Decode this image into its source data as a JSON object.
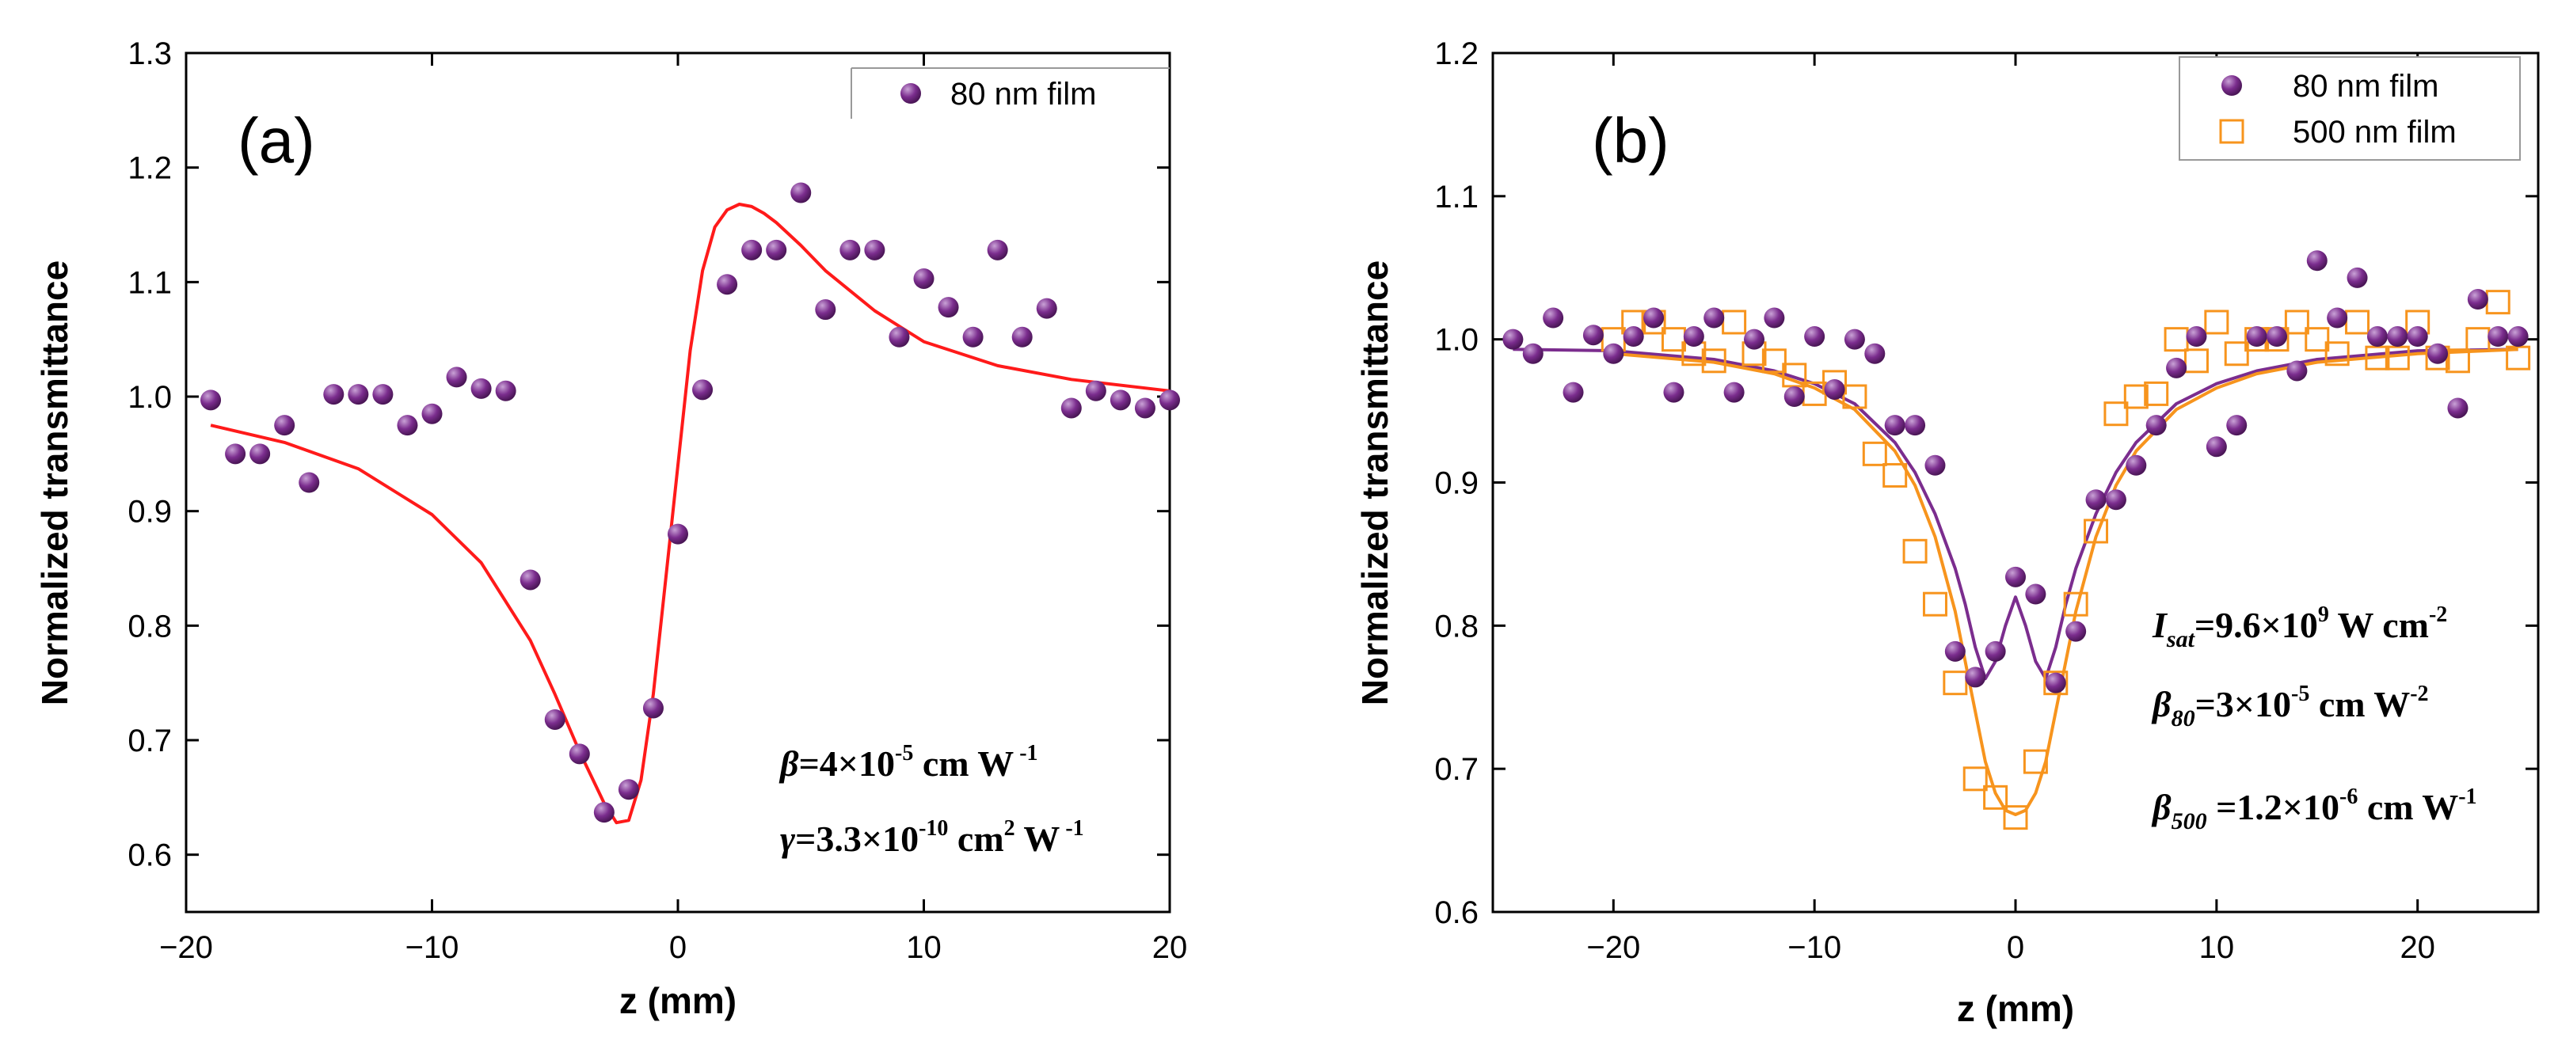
{
  "colors": {
    "dot": "#7b2d8e",
    "dot_highlight": "#c9a2d6",
    "fit_a": "#ff1a1a",
    "square": "#f7941d",
    "fit_b_purple": "#7b2d8e",
    "fit_b_orange": "#f7941d"
  },
  "chart_data": [
    {
      "id": "a",
      "type": "scatter",
      "panel_label": "(a)",
      "xlabel": "z (mm)",
      "ylabel": "Normalized transmittance",
      "xlim": [
        -20,
        20
      ],
      "ylim": [
        0.55,
        1.3
      ],
      "xticks": [
        -20,
        -10,
        0,
        10,
        20
      ],
      "xtick_labels": [
        "−20",
        "−10",
        "0",
        "10",
        "20"
      ],
      "yticks": [
        0.6,
        0.7,
        0.8,
        0.9,
        1.0,
        1.1,
        1.2,
        1.3
      ],
      "ytick_labels": [
        "0.6",
        "0.7",
        "0.8",
        "0.9",
        "1.0",
        "1.1",
        "1.2",
        "1.3"
      ],
      "legend": [
        {
          "name": "80 nm film",
          "marker": "circle"
        }
      ],
      "series": [
        {
          "name": "80 nm film",
          "marker": "circle",
          "x": [
            -19,
            -18,
            -17,
            -16,
            -15,
            -14,
            -13,
            -12,
            -11,
            -10,
            -9,
            -8,
            -7,
            -6,
            -5,
            -4,
            -3,
            -2,
            -1,
            0,
            1,
            2,
            3,
            4,
            5,
            6,
            7,
            8,
            9,
            10,
            11,
            12,
            13,
            14,
            15,
            16,
            17,
            18,
            19,
            20
          ],
          "y": [
            0.997,
            0.95,
            0.95,
            0.975,
            0.925,
            1.002,
            1.002,
            1.002,
            0.975,
            0.985,
            1.017,
            1.007,
            1.005,
            0.84,
            0.718,
            0.688,
            0.637,
            0.657,
            0.728,
            0.88,
            1.006,
            1.098,
            1.128,
            1.128,
            1.178,
            1.076,
            1.128,
            1.128,
            1.052,
            1.103,
            1.078,
            1.052,
            1.128,
            1.052,
            1.077,
            0.99,
            1.005,
            0.997,
            0.99,
            0.997
          ]
        }
      ],
      "fit": {
        "name": "fit",
        "x": [
          -19,
          -16,
          -13,
          -10,
          -8,
          -6,
          -5,
          -4,
          -3,
          -2.5,
          -2,
          -1.5,
          -1,
          -0.5,
          0,
          0.5,
          1,
          1.5,
          2,
          2.5,
          3,
          3.5,
          4,
          5,
          6,
          8,
          10,
          13,
          16,
          20
        ],
        "y": [
          0.975,
          0.96,
          0.937,
          0.897,
          0.855,
          0.787,
          0.74,
          0.69,
          0.645,
          0.628,
          0.63,
          0.665,
          0.74,
          0.84,
          0.94,
          1.04,
          1.11,
          1.148,
          1.163,
          1.168,
          1.166,
          1.16,
          1.152,
          1.132,
          1.11,
          1.075,
          1.048,
          1.027,
          1.015,
          1.005
        ]
      },
      "annotations": [
        {
          "symbol": "β",
          "text": "=4×10",
          "sup": "-5",
          "tail": " cm W",
          "tail_sup": " -1"
        },
        {
          "symbol": "γ",
          "text": "=3.3×10",
          "sup": "-10",
          "tail": " cm",
          "tail_sup": "2",
          "tail2": " W",
          "tail2_sup": " -1"
        }
      ]
    },
    {
      "id": "b",
      "type": "scatter",
      "panel_label": "(b)",
      "xlabel": "z (mm)",
      "ylabel": "Normalized transmittance",
      "xlim": [
        -26,
        26
      ],
      "ylim": [
        0.6,
        1.2
      ],
      "xticks": [
        -20,
        -10,
        0,
        10,
        20
      ],
      "xtick_labels": [
        "−20",
        "−10",
        "0",
        "10",
        "20"
      ],
      "yticks": [
        0.6,
        0.7,
        0.8,
        0.9,
        1.0,
        1.1,
        1.2
      ],
      "ytick_labels": [
        "0.6",
        "0.7",
        "0.8",
        "0.9",
        "1.0",
        "1.1",
        "1.2"
      ],
      "legend": [
        {
          "name": "80 nm film",
          "marker": "circle"
        },
        {
          "name": "500 nm film",
          "marker": "square"
        }
      ],
      "series": [
        {
          "name": "80 nm film",
          "marker": "circle",
          "x": [
            -25,
            -24,
            -23,
            -22,
            -21,
            -20,
            -19,
            -18,
            -17,
            -16,
            -15,
            -14,
            -13,
            -12,
            -11,
            -10,
            -9,
            -8,
            -7,
            -6,
            -5,
            -4,
            -3,
            -2,
            -1,
            0,
            1,
            2,
            3,
            4,
            5,
            6,
            7,
            8,
            9,
            10,
            11,
            12,
            13,
            14,
            15,
            16,
            17,
            18,
            19,
            20,
            21,
            22,
            23,
            24,
            25
          ],
          "y": [
            1.0,
            0.99,
            1.015,
            0.963,
            1.003,
            0.99,
            1.002,
            1.015,
            0.963,
            1.002,
            1.015,
            0.963,
            1.0,
            1.015,
            0.96,
            1.002,
            0.965,
            1.0,
            0.99,
            0.94,
            0.94,
            0.912,
            0.782,
            0.764,
            0.782,
            0.834,
            0.822,
            0.76,
            0.796,
            0.888,
            0.888,
            0.912,
            0.94,
            0.98,
            1.002,
            0.925,
            0.94,
            1.002,
            1.002,
            0.978,
            1.055,
            1.015,
            1.043,
            1.002,
            1.002,
            1.002,
            0.99,
            0.952,
            1.028,
            1.002,
            1.002
          ]
        },
        {
          "name": "500 nm film",
          "marker": "square",
          "x": [
            -20,
            -19,
            -18,
            -17,
            -16,
            -15,
            -14,
            -13,
            -12,
            -11,
            -10,
            -9,
            -8,
            -7,
            -6,
            -5,
            -4,
            -3,
            -2,
            -1,
            0,
            1,
            2,
            3,
            4,
            5,
            6,
            7,
            8,
            9,
            10,
            11,
            12,
            13,
            14,
            15,
            16,
            17,
            18,
            19,
            20,
            21,
            22,
            23,
            24,
            25
          ],
          "y": [
            1.0,
            1.012,
            1.012,
            1.0,
            0.99,
            0.985,
            1.012,
            0.99,
            0.985,
            0.975,
            0.962,
            0.97,
            0.96,
            0.92,
            0.905,
            0.852,
            0.815,
            0.76,
            0.693,
            0.68,
            0.666,
            0.705,
            0.76,
            0.815,
            0.866,
            0.948,
            0.96,
            0.962,
            1.0,
            0.985,
            1.012,
            0.99,
            1.0,
            1.0,
            1.012,
            1.0,
            0.99,
            1.012,
            0.987,
            0.987,
            1.012,
            0.987,
            0.985,
            1.0,
            1.026,
            0.987
          ]
        }
      ],
      "fits": [
        {
          "name": "80 nm fit",
          "color_key": "fit_b_purple",
          "x": [
            -25,
            -20,
            -15,
            -12,
            -10,
            -8,
            -6,
            -5,
            -4,
            -3,
            -2.5,
            -2,
            -1.5,
            -1,
            -0.5,
            0,
            0.5,
            1,
            1.5,
            2,
            2.5,
            3,
            4,
            5,
            6,
            8,
            10,
            12,
            15,
            20,
            25
          ],
          "y": [
            0.993,
            0.992,
            0.986,
            0.978,
            0.969,
            0.955,
            0.928,
            0.907,
            0.878,
            0.84,
            0.815,
            0.785,
            0.763,
            0.775,
            0.8,
            0.82,
            0.8,
            0.775,
            0.763,
            0.785,
            0.815,
            0.84,
            0.878,
            0.907,
            0.928,
            0.955,
            0.969,
            0.978,
            0.986,
            0.992,
            0.993
          ]
        },
        {
          "name": "500 nm fit",
          "color_key": "fit_b_orange",
          "x": [
            -20,
            -15,
            -12,
            -10,
            -8,
            -6,
            -5,
            -4,
            -3,
            -2,
            -1.5,
            -1,
            -0.5,
            0,
            0.5,
            1,
            1.5,
            2,
            3,
            4,
            5,
            6,
            8,
            10,
            12,
            15,
            20,
            25
          ],
          "y": [
            0.99,
            0.984,
            0.976,
            0.966,
            0.951,
            0.922,
            0.898,
            0.862,
            0.81,
            0.74,
            0.705,
            0.683,
            0.671,
            0.668,
            0.671,
            0.683,
            0.705,
            0.74,
            0.81,
            0.862,
            0.898,
            0.922,
            0.951,
            0.966,
            0.976,
            0.984,
            0.99,
            0.993
          ]
        }
      ],
      "annotations": [
        {
          "symbol": "I",
          "sub": "sat",
          "text": "=9.6×10",
          "sup": "9",
          "tail": "  W cm",
          "tail_sup": "-2"
        },
        {
          "symbol": "β",
          "sub": "80",
          "text": "=3×10",
          "sup": "-5",
          "tail": " cm W",
          "tail_sup": "-2"
        },
        {
          "symbol": "β",
          "sub": "500",
          "text": " =1.2×10",
          "sup": "-6",
          "tail": " cm W",
          "tail_sup": "-1"
        }
      ]
    }
  ]
}
